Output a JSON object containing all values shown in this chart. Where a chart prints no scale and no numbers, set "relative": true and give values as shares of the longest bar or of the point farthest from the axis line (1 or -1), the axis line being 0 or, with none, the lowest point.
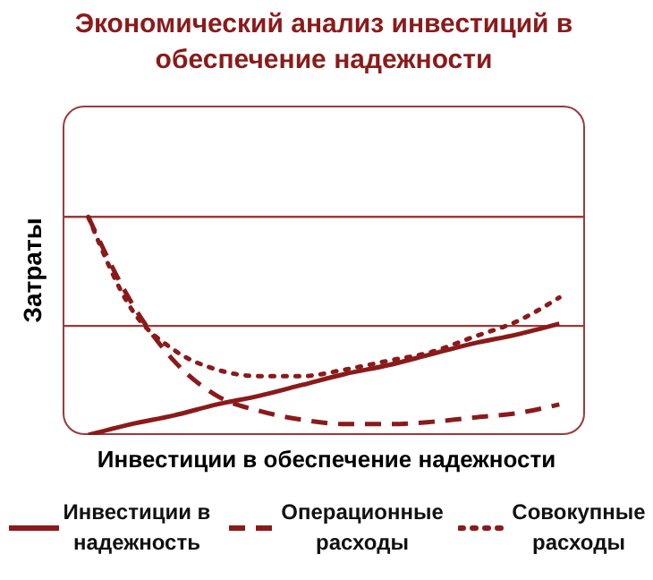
{
  "chart_data": {
    "type": "line",
    "title": "Экономический анализ инвестиций в обеспечение надежности",
    "xlabel": "Инвестиции в обеспечение надежности",
    "ylabel": "Затраты",
    "relative": true,
    "categories": [
      null,
      null,
      null,
      null,
      null,
      null,
      null,
      null,
      null,
      null,
      null,
      null
    ],
    "series": [
      {
        "name": "Инвестиции в надежность",
        "color": "#8b1a1a",
        "line_style": "solid",
        "values": [
          0,
          0.05,
          0.09,
          0.14,
          0.18,
          0.23,
          0.28,
          0.32,
          0.37,
          0.42,
          0.46,
          0.51
        ]
      },
      {
        "name": "Операционные расходы",
        "color": "#8b1a1a",
        "line_style": "dashed",
        "values": [
          1,
          0.61,
          0.34,
          0.18,
          0.11,
          0.07,
          0.05,
          0.05,
          0.06,
          0.08,
          0.1,
          0.14
        ]
      },
      {
        "name": "Совокупные расходы",
        "color": "#8b1a1a",
        "line_style": "dotted",
        "values": [
          1,
          0.58,
          0.39,
          0.3,
          0.27,
          0.27,
          0.3,
          0.34,
          0.38,
          0.45,
          0.52,
          0.63
        ]
      }
    ],
    "ref_lines": [
      {
        "axis": "y",
        "value": 1,
        "color": "#9b3a3a"
      },
      {
        "axis": "y",
        "value": 0.5,
        "color": "#9b3a3a"
      }
    ],
    "marker": "none",
    "legend": "bottom",
    "tick_labels": false
  }
}
